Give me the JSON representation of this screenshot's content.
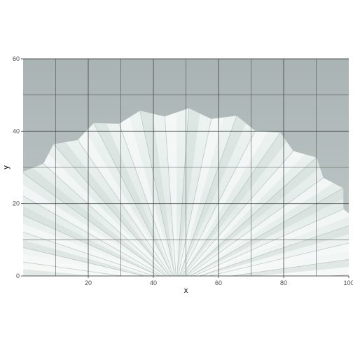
{
  "chart_data": {
    "type": "heatmap",
    "title": "",
    "xlabel": "x",
    "ylabel": "y",
    "xlim": [
      0,
      100
    ],
    "ylim": [
      0,
      60
    ],
    "x_ticks": [
      20,
      40,
      60,
      80,
      100
    ],
    "y_ticks": [
      0,
      20,
      40,
      60
    ],
    "x_tick_labels": [
      "20",
      "40",
      "60",
      "80",
      "100"
    ],
    "y_tick_labels": [
      "0",
      "20",
      "40",
      "60"
    ],
    "grid": true,
    "raster_content": "photo of a fanned white paper folds radiating from bottom centre against a grey background",
    "colors": {
      "sky": "#aeb8b7",
      "paper_light": "#f4f8f6",
      "paper_shadow": "#c6d3cf",
      "grid": "#3b3f3e"
    }
  }
}
